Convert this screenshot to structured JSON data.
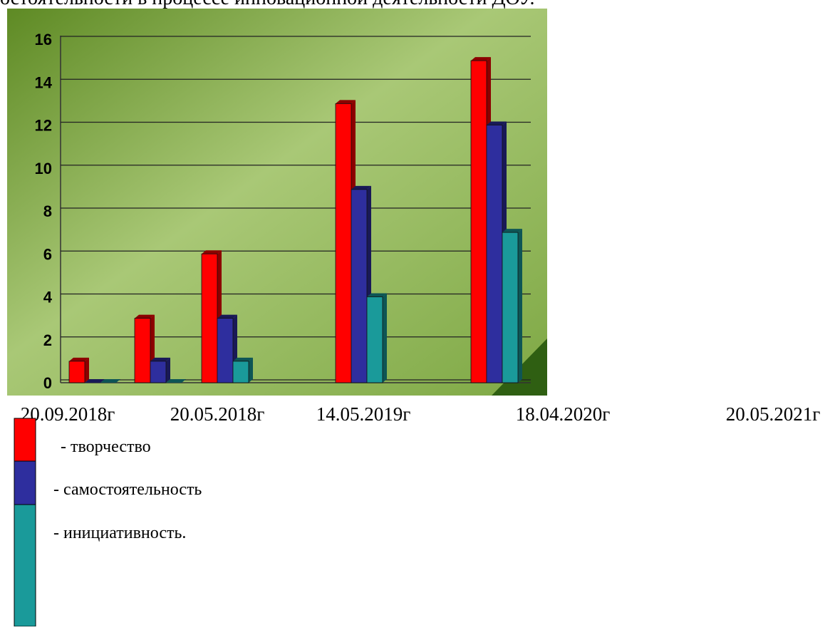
{
  "header": {
    "text": "остоятельности в процессе инновационной деятельности ДОУ."
  },
  "chart_data": {
    "type": "bar",
    "categories": [
      "20.09.2018г",
      "20.05.2018г",
      "14.05.2019г",
      "18.04.2020г",
      "20.05.2021г"
    ],
    "series": [
      {
        "name": "- творчество",
        "color": "#ff0000",
        "values": [
          1,
          3,
          6,
          13,
          15
        ]
      },
      {
        "name": "- самостоятельность",
        "color": "#2e2e9e",
        "values": [
          0,
          1,
          3,
          9,
          12
        ]
      },
      {
        "name": "- инициативность.",
        "color": "#1a9a9a",
        "values": [
          0,
          0,
          1,
          4,
          7
        ]
      }
    ],
    "ylim": [
      0,
      16
    ],
    "yticks": [
      0,
      2,
      4,
      6,
      8,
      10,
      12,
      14,
      16
    ],
    "grid": true
  }
}
